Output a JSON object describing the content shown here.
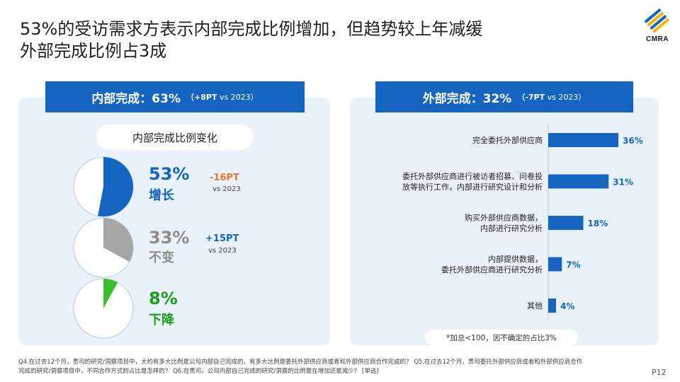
{
  "title": {
    "line1": "53%的受访需求方表示内部完成比例增加，但趋势较上年减缓",
    "line2": "外部完成比例占3成"
  },
  "logo": {
    "text": "CMRA"
  },
  "left_panel": {
    "header_main": "内部完成：63%",
    "header_sub_value": "（+8PT",
    "header_sub_rest": " vs 2023）",
    "pill_label": "内部完成比例变化",
    "items": [
      {
        "pct": "53%",
        "label": "增长",
        "change": "-16PT",
        "vs": "vs 2023",
        "value": 53,
        "color": "#1565c0",
        "pct_color": "#1565c0"
      },
      {
        "pct": "33%",
        "label": "不变",
        "change": "+15PT",
        "vs": "vs 2023",
        "value": 33,
        "color": "#a6a6a6",
        "pct_color": "#8c8c8c"
      },
      {
        "pct": "8%",
        "label": "下降",
        "change": "",
        "vs": "",
        "value": 8,
        "color": "#3dbe2e",
        "pct_color": "#1c9e1c"
      }
    ]
  },
  "right_panel": {
    "header_main": "外部完成：32%",
    "header_sub_value": "（-7PT",
    "header_sub_rest": " vs 2023）",
    "note": "*加总<100，因不确定的占比3%"
  },
  "chart_data": [
    {
      "type": "pie",
      "title": "内部完成比例变化",
      "categories": [
        "增长",
        "不变",
        "下降"
      ],
      "values": [
        53,
        33,
        8
      ],
      "changes_vs_2023": [
        "-16PT",
        "+15PT",
        ""
      ]
    },
    {
      "type": "bar",
      "orientation": "horizontal",
      "title": "外部完成：32%",
      "categories": [
        [
          "完全委托外部供应商"
        ],
        [
          "委托外部供应商进行被访者招募、问卷投",
          "放等执行工作，内部进行研究设计和分析"
        ],
        [
          "购买外部供应商数据，",
          "内部进行研究分析"
        ],
        [
          "内部提供数据，",
          "委托外部供应商进行研究分析"
        ],
        [
          "其他"
        ]
      ],
      "values": [
        36,
        31,
        18,
        7,
        4
      ],
      "value_labels": [
        "36%",
        "31%",
        "18%",
        "7%",
        "4%"
      ],
      "xlim": [
        0,
        40
      ],
      "grid": false
    }
  ],
  "footnote": {
    "line1": "Q4.在过去12个月，贵司的研究/洞察项目中，大约有多大比例是公司内部自己完成的，有多大比例是委托外部供应商或者和外部供应商合作完成的？ Q5.在过去12个月，贵司委托外部供应商或者和外部供应商合作",
    "line2": "完成的研究/洞察项目中，不同合作方式的占比是怎样的？ Q6.在贵司，公司内部自己完成的研究/洞察的比例是在增加还是减少？ [单选]"
  },
  "page_number": "P12",
  "colors": {
    "accent": "#1565c0",
    "panel_bg": "#e9f1fa",
    "change_negative": "#e8782a",
    "change_positive": "#1565c0"
  }
}
